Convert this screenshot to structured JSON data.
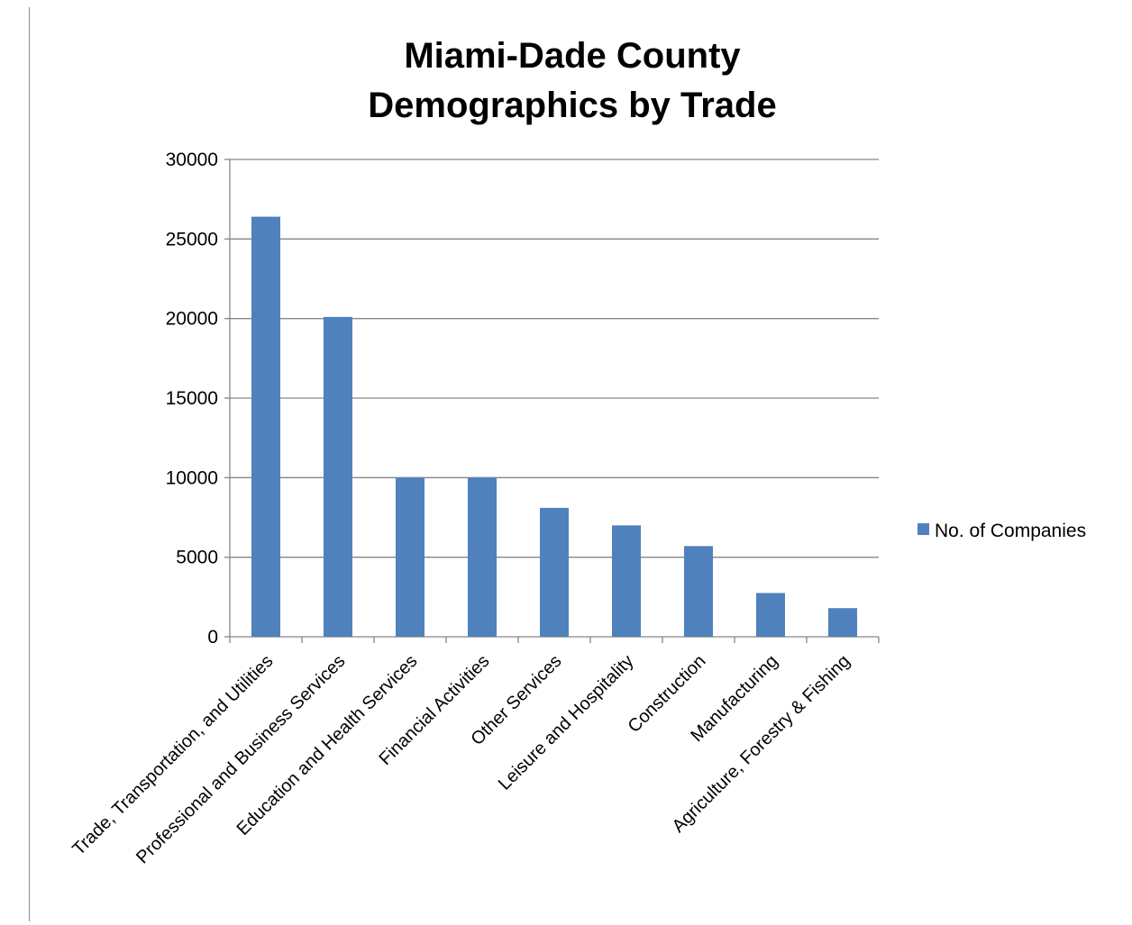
{
  "chart_data": {
    "type": "bar",
    "title": [
      "Miami-Dade County",
      "Demographics by Trade"
    ],
    "categories": [
      "Trade, Transportation, and Utilities",
      "Professional and Business Services",
      "Education and Health Services",
      "Financial Activities",
      "Other Services",
      "Leisure and Hospitality",
      "Construction",
      "Manufacturing",
      "Agriculture, Forestry & Fishing"
    ],
    "series": [
      {
        "name": "No. of Companies",
        "values": [
          26400,
          20100,
          10000,
          10000,
          8100,
          7000,
          5700,
          2750,
          1800
        ],
        "color": "#4f81bd"
      }
    ],
    "ylim": [
      0,
      30000
    ],
    "yticks": [
      0,
      5000,
      10000,
      15000,
      20000,
      25000,
      30000
    ],
    "grid": true,
    "legend": "right",
    "xlabel": "",
    "ylabel": ""
  }
}
